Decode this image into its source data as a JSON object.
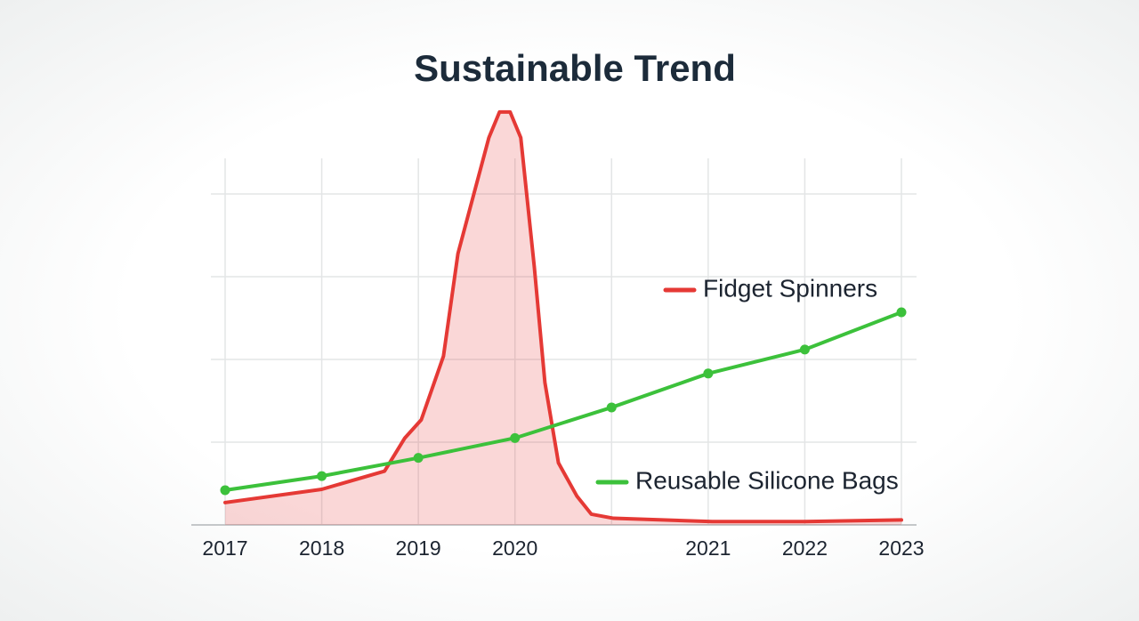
{
  "chart_data": {
    "type": "line",
    "title": "Sustainable Trend",
    "categories": [
      "2017",
      "2018",
      "2019",
      "2020",
      null,
      "2021",
      "2022",
      "2023"
    ],
    "xlim": [
      0,
      7
    ],
    "ylim": [
      0,
      5
    ],
    "yticks": [
      0,
      1,
      2,
      3,
      4
    ],
    "grid": true,
    "series": [
      {
        "name": "Fidget Spinners",
        "color": "#e53935",
        "fill": true,
        "x": [
          0,
          1.0,
          1.65,
          1.86,
          2.03,
          2.26,
          2.41,
          2.73,
          2.84,
          2.95,
          3.06,
          3.2,
          3.31,
          3.45,
          3.64,
          3.79,
          4.02,
          5.04,
          6.0,
          7.0
        ],
        "values": [
          0.27,
          0.43,
          0.65,
          1.05,
          1.27,
          2.04,
          3.28,
          4.68,
          4.99,
          4.99,
          4.68,
          3.12,
          1.72,
          0.75,
          0.35,
          0.13,
          0.08,
          0.04,
          0.04,
          0.06
        ]
      },
      {
        "name": "Reusable Silicone Bags",
        "color": "#3cc13b",
        "markers": true,
        "values": [
          0.42,
          0.59,
          0.81,
          1.05,
          1.42,
          1.83,
          2.12,
          2.57
        ]
      }
    ]
  }
}
